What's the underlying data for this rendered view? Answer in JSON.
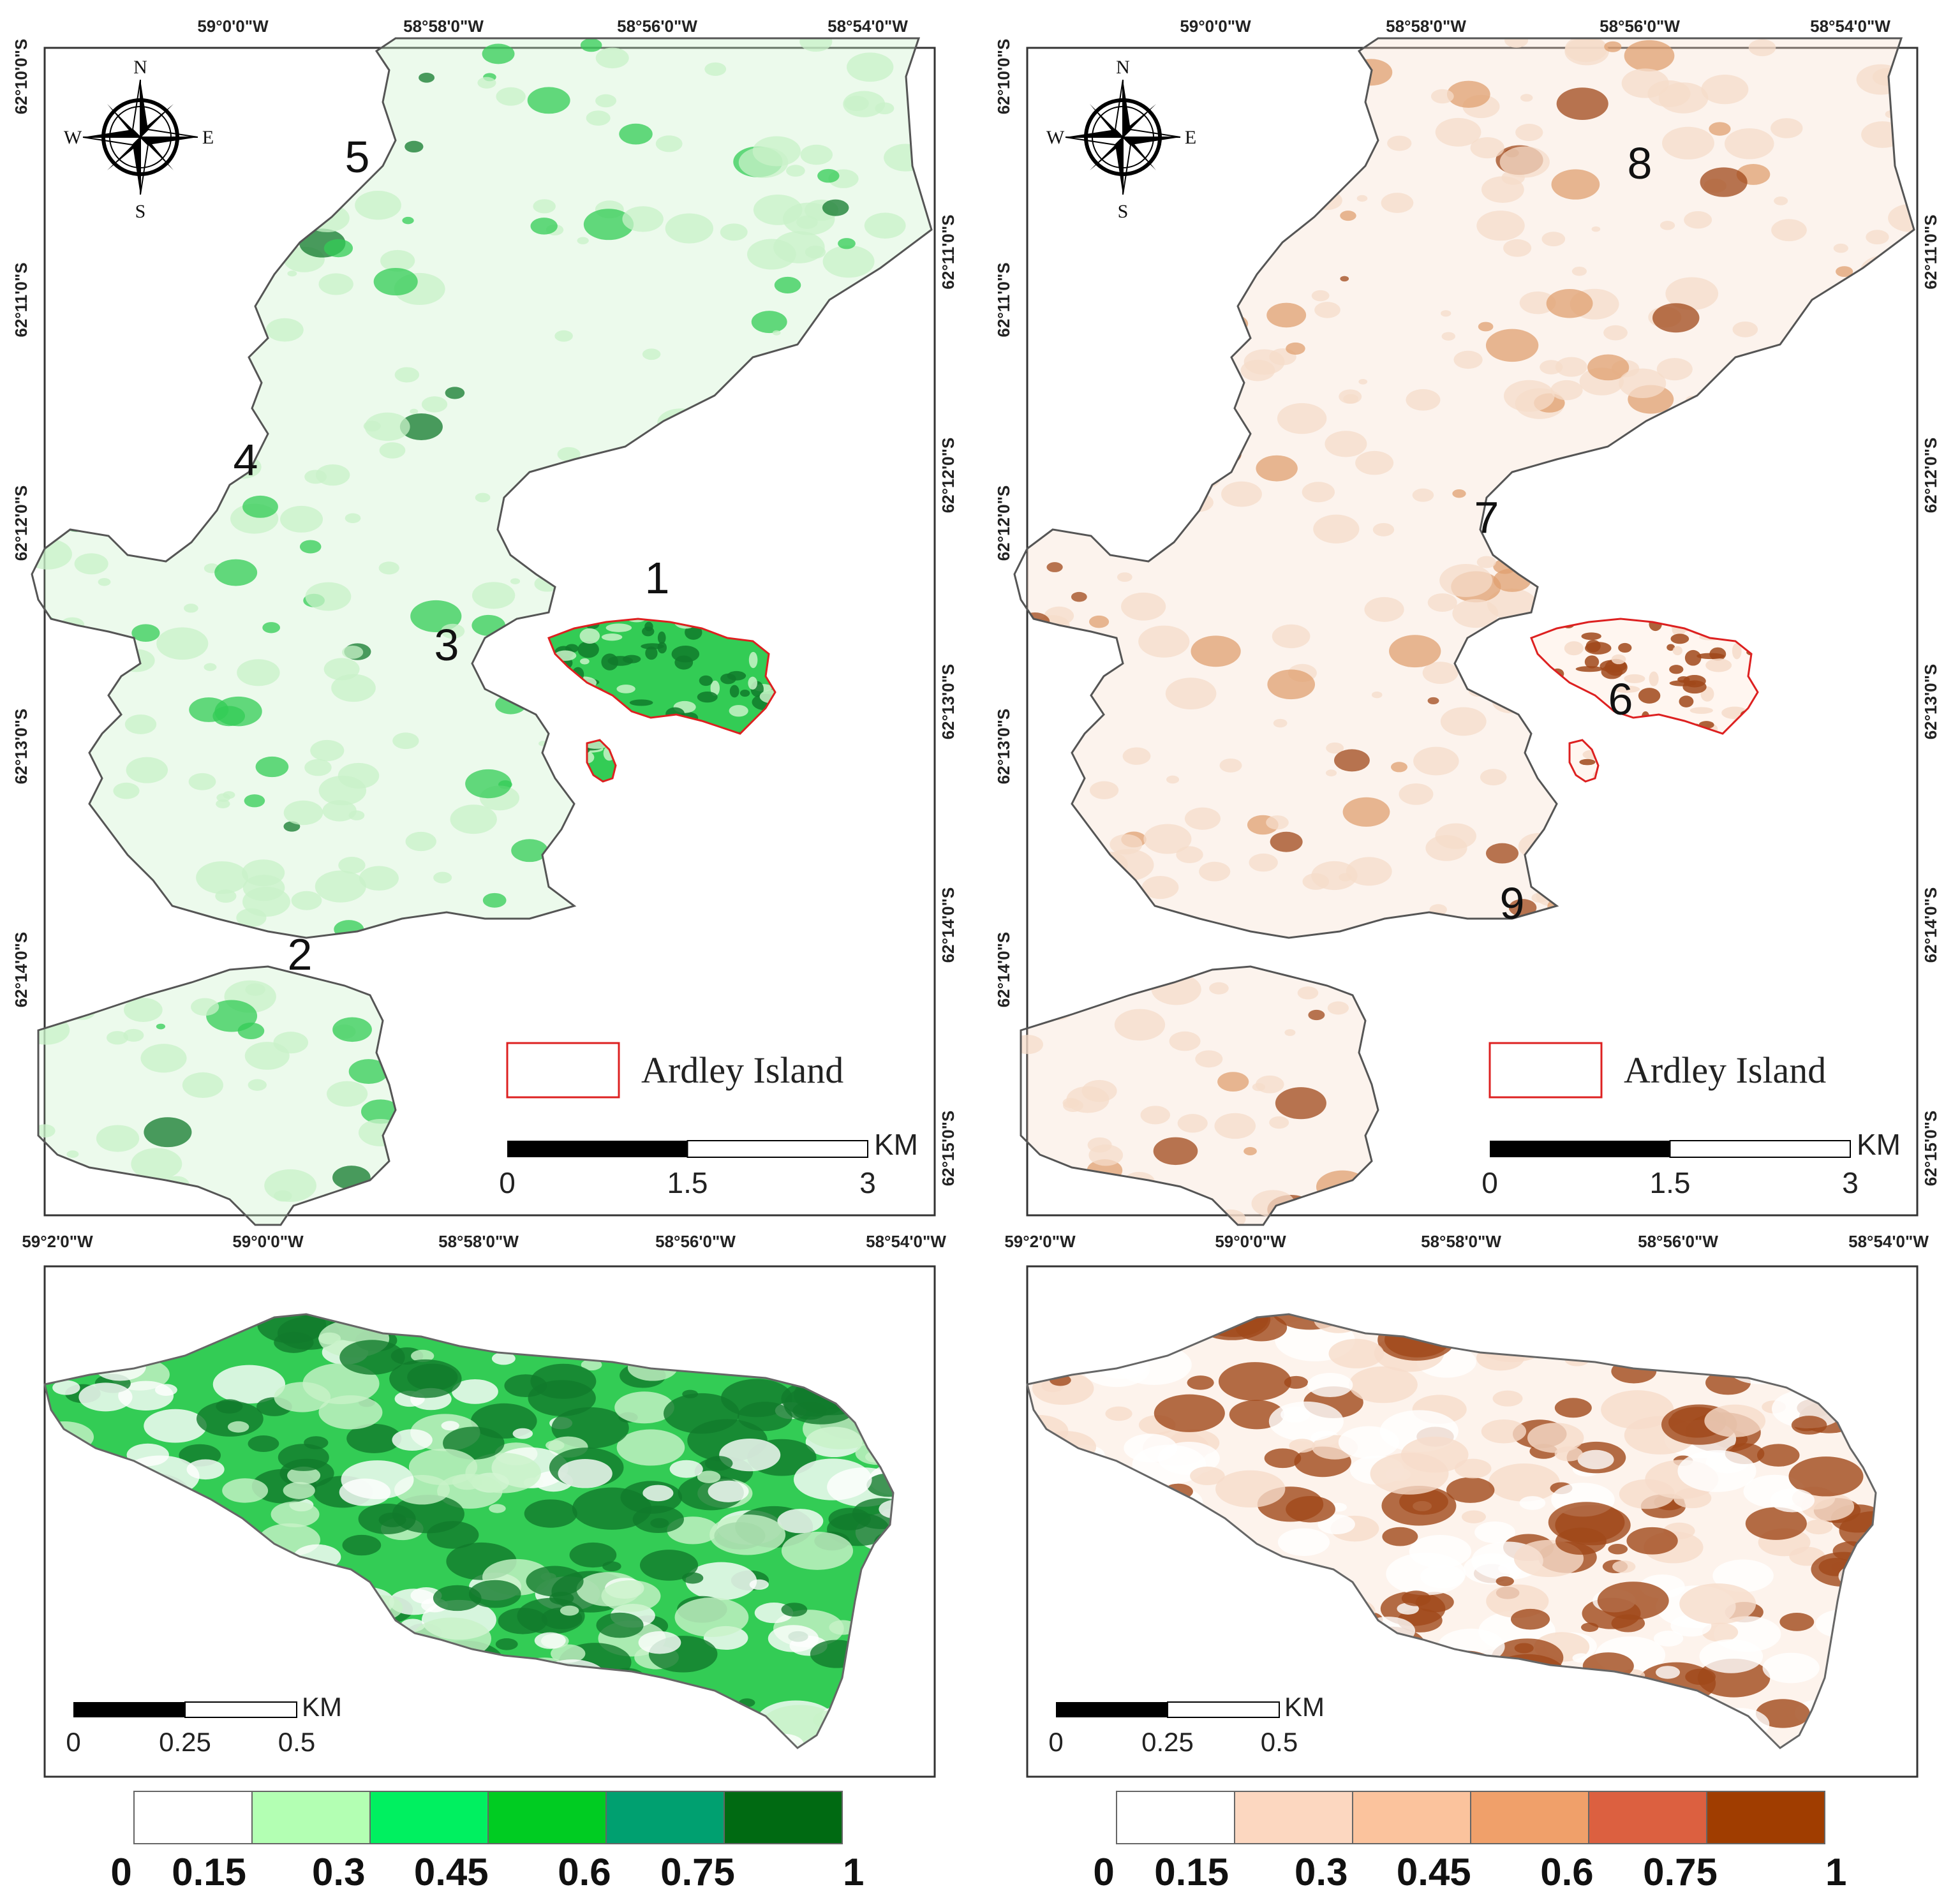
{
  "top_x_ticks": [
    "59°0'0\"W",
    "58°58'0\"W",
    "58°56'0\"W",
    "58°54'0\"W"
  ],
  "bottom_x_ticks": [
    "59°2'0\"W",
    "59°0'0\"W",
    "58°58'0\"W",
    "58°56'0\"W",
    "58°54'0\"W"
  ],
  "left_y_ticks": [
    "62°10'0\"S",
    "62°11'0\"S",
    "62°12'0\"S",
    "62°13'0\"S",
    "62°14'0\"S"
  ],
  "right_y_ticks": [
    "62°11'0\"S",
    "62°12'0\"S",
    "62°13'0\"S",
    "62°14'0\"S",
    "62°15'0\"S"
  ],
  "compass": {
    "n": "N",
    "s": "S",
    "e": "E",
    "w": "W"
  },
  "maps": [
    {
      "id": "green",
      "region_labels": [
        "1",
        "2",
        "3",
        "4",
        "5"
      ],
      "legend_label": "Ardley Island",
      "scale_labels": [
        "0",
        "1.5",
        "3"
      ],
      "scale_unit": "KM",
      "inset_scale_labels": [
        "0",
        "0.25",
        "0.5"
      ],
      "inset_scale_unit": "KM",
      "colors": {
        "light": "#c8f2c8",
        "mid": "#33cc55",
        "dark": "#117a2c"
      }
    },
    {
      "id": "brown",
      "region_labels": [
        "6",
        "7",
        "8",
        "9"
      ],
      "legend_label": "Ardley Island",
      "scale_labels": [
        "0",
        "1.5",
        "3"
      ],
      "scale_unit": "KM",
      "inset_scale_labels": [
        "0",
        "0.25",
        "0.5"
      ],
      "inset_scale_unit": "KM",
      "colors": {
        "light": "#f6dcca",
        "mid": "#e0a070",
        "dark": "#a0481a"
      }
    }
  ],
  "colorbars": [
    {
      "colors": [
        "#ffffff",
        "#b3ffb3",
        "#00f060",
        "#00cc22",
        "#00a070",
        "#006a12"
      ],
      "labels": [
        "0",
        "0.15",
        "0.3",
        "0.45",
        "0.6",
        "0.75",
        "1"
      ]
    },
    {
      "colors": [
        "#ffffff",
        "#fcd7c0",
        "#fbc39d",
        "#f0a06a",
        "#dc6040",
        "#a03d00"
      ],
      "labels": [
        "0",
        "0.15",
        "0.3",
        "0.45",
        "0.6",
        "0.75",
        "1"
      ]
    }
  ],
  "island_outline_color": "#dd2020"
}
